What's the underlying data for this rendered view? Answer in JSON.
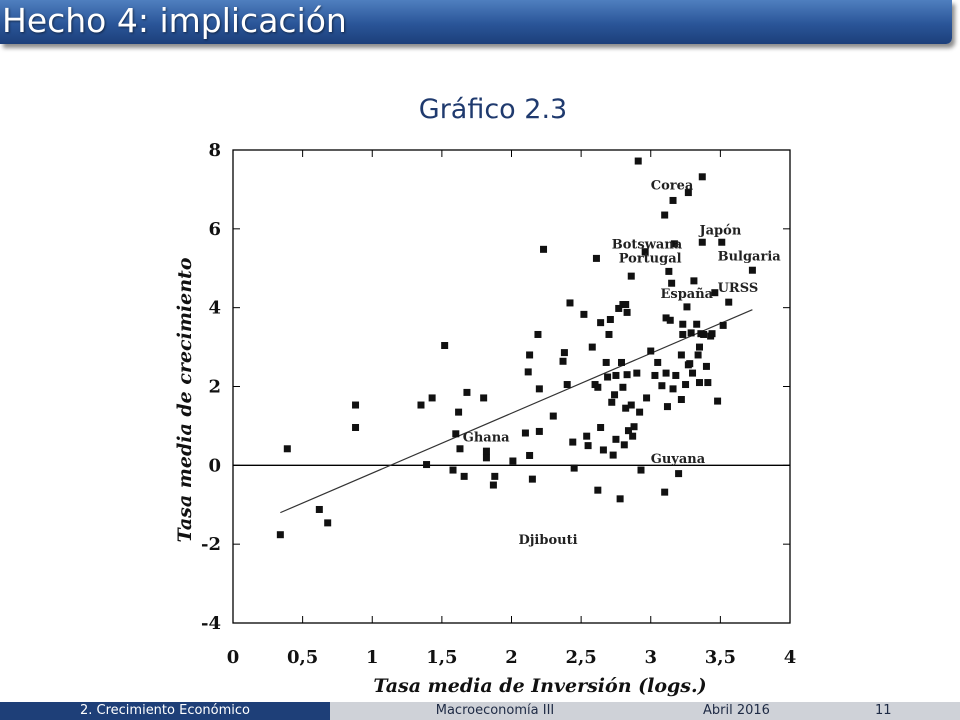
{
  "slide": {
    "title": "Hecho 4: implicación",
    "chart_heading": "Gráfico 2.3"
  },
  "footer": {
    "section": "2. Crecimiento Económico",
    "course": "Macroeconomía III",
    "date": "Abril 2016",
    "page": "11"
  },
  "chart_data": {
    "type": "scatter",
    "title": "",
    "xlabel": "Tasa media de Inversión (logs.)",
    "ylabel": "Tasa media de crecimiento",
    "xlim": [
      0,
      4
    ],
    "ylim": [
      -4,
      8
    ],
    "x_ticks": [
      0,
      0.5,
      1,
      1.5,
      2,
      2.5,
      3,
      3.5,
      4
    ],
    "x_tick_labels": [
      "0",
      "0,5",
      "1",
      "1,5",
      "2",
      "2,5",
      "3",
      "3,5",
      "4"
    ],
    "y_ticks": [
      -4,
      -2,
      0,
      2,
      4,
      6,
      8
    ],
    "y_tick_labels": [
      "-4",
      "-2",
      "0",
      "2",
      "4",
      "6",
      "8"
    ],
    "grid": false,
    "zero_line": true,
    "trend_line": [
      [
        0.34,
        -1.2
      ],
      [
        3.73,
        3.95
      ]
    ],
    "annotations": [
      {
        "text": "Corea",
        "x": 3.0,
        "y": 7.0
      },
      {
        "text": "Japón",
        "x": 3.35,
        "y": 5.85
      },
      {
        "text": "Botswana",
        "x": 2.72,
        "y": 5.5
      },
      {
        "text": "Bulgaria",
        "x": 3.48,
        "y": 5.2
      },
      {
        "text": "Portugal",
        "x": 2.77,
        "y": 5.15
      },
      {
        "text": "URSS",
        "x": 3.48,
        "y": 4.4
      },
      {
        "text": "España",
        "x": 3.07,
        "y": 4.25
      },
      {
        "text": "Ghana",
        "x": 1.65,
        "y": 0.6
      },
      {
        "text": "Guyana",
        "x": 3.0,
        "y": 0.06
      },
      {
        "text": "Djibouti",
        "x": 2.05,
        "y": -2.0
      }
    ],
    "points": [
      [
        0.34,
        -1.76
      ],
      [
        0.39,
        0.42
      ],
      [
        0.62,
        -1.12
      ],
      [
        0.68,
        -1.46
      ],
      [
        0.88,
        1.53
      ],
      [
        0.88,
        0.96
      ],
      [
        1.35,
        1.53
      ],
      [
        1.39,
        0.02
      ],
      [
        1.43,
        1.71
      ],
      [
        1.52,
        3.04
      ],
      [
        1.58,
        -0.12
      ],
      [
        1.6,
        0.8
      ],
      [
        1.62,
        1.35
      ],
      [
        1.63,
        0.42
      ],
      [
        1.66,
        -0.28
      ],
      [
        1.68,
        1.85
      ],
      [
        1.8,
        1.71
      ],
      [
        1.82,
        0.19
      ],
      [
        1.82,
        0.36
      ],
      [
        1.87,
        -0.5
      ],
      [
        1.88,
        -0.28
      ],
      [
        2.01,
        0.11
      ],
      [
        2.1,
        0.82
      ],
      [
        2.12,
        2.37
      ],
      [
        2.13,
        2.8
      ],
      [
        2.13,
        0.25
      ],
      [
        2.15,
        -0.35
      ],
      [
        2.19,
        3.32
      ],
      [
        2.2,
        0.86
      ],
      [
        2.2,
        1.94
      ],
      [
        2.23,
        5.48
      ],
      [
        2.3,
        1.25
      ],
      [
        2.37,
        2.64
      ],
      [
        2.38,
        2.86
      ],
      [
        2.4,
        2.05
      ],
      [
        2.42,
        4.12
      ],
      [
        2.44,
        0.59
      ],
      [
        2.45,
        -0.07
      ],
      [
        2.52,
        3.83
      ],
      [
        2.54,
        0.74
      ],
      [
        2.55,
        0.5
      ],
      [
        2.58,
        3.0
      ],
      [
        2.6,
        2.05
      ],
      [
        2.61,
        5.25
      ],
      [
        2.62,
        1.98
      ],
      [
        2.62,
        -0.63
      ],
      [
        2.64,
        0.96
      ],
      [
        2.64,
        3.62
      ],
      [
        2.66,
        0.39
      ],
      [
        2.68,
        2.61
      ],
      [
        2.69,
        2.24
      ],
      [
        2.7,
        3.32
      ],
      [
        2.71,
        3.7
      ],
      [
        2.72,
        1.6
      ],
      [
        2.73,
        0.26
      ],
      [
        2.74,
        1.79
      ],
      [
        2.75,
        0.66
      ],
      [
        2.75,
        2.28
      ],
      [
        2.77,
        3.98
      ],
      [
        2.78,
        -0.85
      ],
      [
        2.79,
        2.61
      ],
      [
        2.8,
        1.98
      ],
      [
        2.8,
        4.08
      ],
      [
        2.81,
        0.52
      ],
      [
        2.82,
        1.45
      ],
      [
        2.82,
        4.08
      ],
      [
        2.83,
        2.3
      ],
      [
        2.83,
        3.88
      ],
      [
        2.84,
        0.88
      ],
      [
        2.86,
        4.8
      ],
      [
        2.86,
        1.53
      ],
      [
        2.87,
        0.74
      ],
      [
        2.88,
        0.98
      ],
      [
        2.9,
        2.34
      ],
      [
        2.91,
        7.72
      ],
      [
        2.92,
        1.35
      ],
      [
        2.93,
        -0.12
      ],
      [
        2.96,
        5.42
      ],
      [
        2.97,
        1.71
      ],
      [
        3.0,
        2.9
      ],
      [
        3.03,
        2.28
      ],
      [
        3.05,
        2.61
      ],
      [
        3.08,
        2.02
      ],
      [
        3.1,
        -0.68
      ],
      [
        3.1,
        6.35
      ],
      [
        3.11,
        3.74
      ],
      [
        3.11,
        2.34
      ],
      [
        3.12,
        1.49
      ],
      [
        3.13,
        4.92
      ],
      [
        3.14,
        3.68
      ],
      [
        3.15,
        4.62
      ],
      [
        3.16,
        6.72
      ],
      [
        3.16,
        1.94
      ],
      [
        3.17,
        5.62
      ],
      [
        3.18,
        2.28
      ],
      [
        3.2,
        -0.21
      ],
      [
        3.22,
        1.67
      ],
      [
        3.22,
        2.8
      ],
      [
        3.23,
        3.58
      ],
      [
        3.23,
        3.32
      ],
      [
        3.25,
        2.05
      ],
      [
        3.26,
        4.02
      ],
      [
        3.27,
        6.92
      ],
      [
        3.27,
        2.55
      ],
      [
        3.28,
        2.58
      ],
      [
        3.29,
        3.36
      ],
      [
        3.3,
        2.34
      ],
      [
        3.31,
        4.68
      ],
      [
        3.33,
        3.58
      ],
      [
        3.34,
        2.8
      ],
      [
        3.35,
        3.0
      ],
      [
        3.35,
        2.1
      ],
      [
        3.36,
        3.34
      ],
      [
        3.37,
        5.66
      ],
      [
        3.37,
        7.32
      ],
      [
        3.38,
        3.32
      ],
      [
        3.4,
        2.51
      ],
      [
        3.41,
        2.1
      ],
      [
        3.43,
        3.28
      ],
      [
        3.44,
        3.34
      ],
      [
        3.46,
        4.38
      ],
      [
        3.48,
        1.63
      ],
      [
        3.51,
        5.66
      ],
      [
        3.52,
        3.55
      ],
      [
        3.56,
        4.14
      ],
      [
        3.73,
        4.95
      ]
    ]
  }
}
